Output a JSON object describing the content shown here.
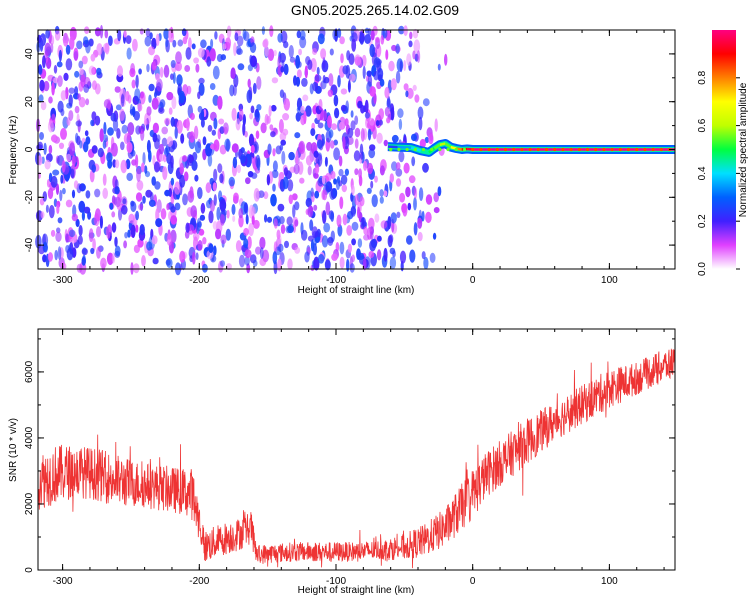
{
  "title": "GN05.2025.265.14.02.G09",
  "chart_data": [
    {
      "type": "heatmap",
      "xlabel": "Height of straight line (km)",
      "ylabel": "Frequency (Hz)",
      "xlim": [
        -318,
        148
      ],
      "ylim": [
        -50,
        50
      ],
      "x_ticks": [
        -300,
        -200,
        -100,
        0,
        100
      ],
      "y_ticks": [
        -40,
        -20,
        0,
        20,
        40
      ],
      "colorbar": {
        "label": "Normalized spectral amplitude",
        "range": [
          0,
          1
        ],
        "ticks": [
          0.0,
          0.2,
          0.4,
          0.6,
          0.8
        ],
        "colors": [
          "#ffffff",
          "#e040ff",
          "#4020ff",
          "#0060ff",
          "#00e0ff",
          "#00ff40",
          "#c0ff00",
          "#ffff00",
          "#ff8000",
          "#ff0000",
          "#ff0080"
        ]
      },
      "noise_region": {
        "x": [
          -318,
          -40
        ],
        "amplitude": 0.18
      },
      "signal_line": {
        "x": [
          -62,
          -55,
          -45,
          -38,
          -32,
          -28,
          -24,
          -20,
          -16,
          -12,
          -8,
          -4,
          0,
          40,
          80,
          120,
          148
        ],
        "freq": [
          1.2,
          1.0,
          0.8,
          -0.5,
          -1.2,
          0.5,
          2.0,
          2.5,
          1.0,
          0.4,
          0.0,
          0.2,
          0.0,
          0.0,
          0.0,
          0.0,
          0.0
        ],
        "amplitude": [
          0.25,
          0.35,
          0.4,
          0.45,
          0.5,
          0.55,
          0.6,
          0.55,
          0.7,
          0.8,
          0.9,
          0.95,
          1.0,
          1.0,
          1.0,
          1.0,
          1.0
        ]
      },
      "grid": false
    },
    {
      "type": "line",
      "xlabel": "Height of straight line (km)",
      "ylabel": "SNR (10 * v/v)",
      "xlim": [
        -318,
        148
      ],
      "ylim": [
        0,
        7300
      ],
      "x_ticks": [
        -300,
        -200,
        -100,
        0,
        100
      ],
      "y_ticks": [
        0,
        2000,
        4000,
        6000
      ],
      "line_color": "#ee3333",
      "series": [
        {
          "x": [
            -318,
            -305,
            -290,
            -275,
            -260,
            -245,
            -230,
            -215,
            -205,
            -200,
            -196,
            -185,
            -170,
            -162,
            -158,
            -150,
            -130,
            -110,
            -90,
            -70,
            -50,
            -35,
            -20,
            -10,
            0,
            10,
            25,
            40,
            60,
            80,
            100,
            120,
            135,
            148
          ],
          "values": [
            2700,
            2900,
            3000,
            2900,
            2700,
            2600,
            2500,
            2400,
            2300,
            1500,
            700,
            900,
            1100,
            1300,
            450,
            500,
            550,
            550,
            550,
            600,
            700,
            900,
            1300,
            1800,
            2300,
            2900,
            3400,
            3900,
            4500,
            5000,
            5500,
            5800,
            6100,
            6300
          ],
          "spread": [
            900,
            900,
            800,
            800,
            800,
            700,
            700,
            700,
            800,
            600,
            500,
            500,
            500,
            500,
            300,
            300,
            300,
            300,
            300,
            300,
            400,
            500,
            600,
            700,
            800,
            700,
            700,
            700,
            600,
            600,
            600,
            500,
            500,
            500
          ]
        }
      ],
      "grid": false
    }
  ]
}
